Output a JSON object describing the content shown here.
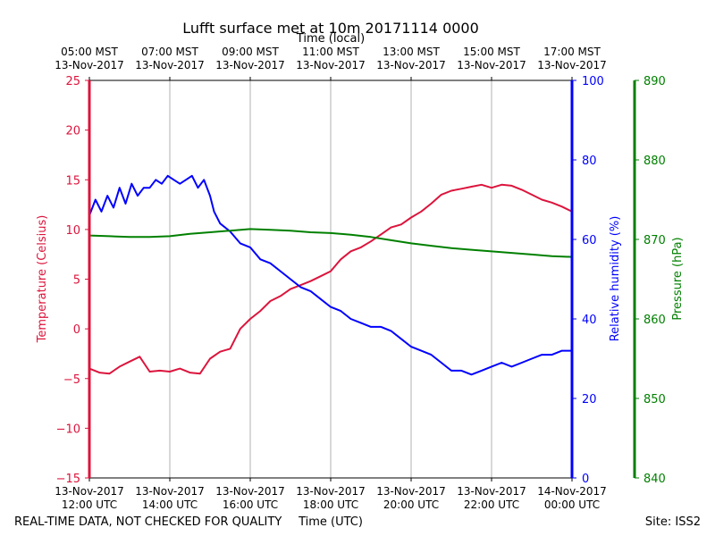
{
  "chart_data": {
    "type": "line",
    "title": "Lufft surface met at 10m 20171114 0000",
    "top_axis_label": "Time (local)",
    "xlabel": "Time (UTC)",
    "x_range_hours_utc": [
      12,
      24
    ],
    "bottom_ticks": [
      {
        "hour": 12,
        "line1": "13-Nov-2017",
        "line2": "12:00 UTC"
      },
      {
        "hour": 14,
        "line1": "13-Nov-2017",
        "line2": "14:00 UTC"
      },
      {
        "hour": 16,
        "line1": "13-Nov-2017",
        "line2": "16:00 UTC"
      },
      {
        "hour": 18,
        "line1": "13-Nov-2017",
        "line2": "18:00 UTC"
      },
      {
        "hour": 20,
        "line1": "13-Nov-2017",
        "line2": "20:00 UTC"
      },
      {
        "hour": 22,
        "line1": "13-Nov-2017",
        "line2": "22:00 UTC"
      },
      {
        "hour": 24,
        "line1": "14-Nov-2017",
        "line2": "00:00 UTC"
      }
    ],
    "top_ticks": [
      {
        "hour": 12,
        "line1": "05:00 MST",
        "line2": "13-Nov-2017"
      },
      {
        "hour": 14,
        "line1": "07:00 MST",
        "line2": "13-Nov-2017"
      },
      {
        "hour": 16,
        "line1": "09:00 MST",
        "line2": "13-Nov-2017"
      },
      {
        "hour": 18,
        "line1": "11:00 MST",
        "line2": "13-Nov-2017"
      },
      {
        "hour": 20,
        "line1": "13:00 MST",
        "line2": "13-Nov-2017"
      },
      {
        "hour": 22,
        "line1": "15:00 MST",
        "line2": "13-Nov-2017"
      },
      {
        "hour": 24,
        "line1": "17:00 MST",
        "line2": "13-Nov-2017"
      }
    ],
    "axes": {
      "temperature": {
        "label": "Temperature (Celsius)",
        "ylim": [
          -15,
          25
        ],
        "ticks": [
          -15,
          -10,
          -5,
          0,
          5,
          10,
          15,
          20,
          25
        ],
        "tick_labels": [
          "−15",
          "−10",
          "−5",
          "0",
          "5",
          "10",
          "15",
          "20",
          "25"
        ],
        "color": "#dc143c"
      },
      "humidity": {
        "label": "Relative humidity (%)",
        "ylim": [
          0,
          100
        ],
        "ticks": [
          0,
          20,
          40,
          60,
          80,
          100
        ],
        "tick_labels": [
          "0",
          "20",
          "40",
          "60",
          "80",
          "100"
        ],
        "color": "#0000ff"
      },
      "pressure": {
        "label": "Pressure (hPa)",
        "ylim": [
          840,
          890
        ],
        "ticks": [
          840,
          850,
          860,
          870,
          880,
          890
        ],
        "tick_labels": [
          "840",
          "850",
          "860",
          "870",
          "880",
          "890"
        ],
        "color": "#008000"
      }
    },
    "grid": true,
    "series": [
      {
        "name": "Temperature",
        "axis": "temperature",
        "color": "#dc143c",
        "x": [
          12.0,
          12.25,
          12.5,
          12.75,
          13.0,
          13.25,
          13.5,
          13.75,
          14.0,
          14.25,
          14.5,
          14.75,
          15.0,
          15.25,
          15.5,
          15.75,
          16.0,
          16.25,
          16.5,
          16.75,
          17.0,
          17.25,
          17.5,
          17.75,
          18.0,
          18.25,
          18.5,
          18.75,
          19.0,
          19.25,
          19.5,
          19.75,
          20.0,
          20.25,
          20.5,
          20.75,
          21.0,
          21.25,
          21.5,
          21.75,
          22.0,
          22.25,
          22.5,
          22.75,
          23.0,
          23.25,
          23.5,
          23.75,
          24.0
        ],
        "y": [
          -4.0,
          -4.4,
          -4.5,
          -3.8,
          -3.3,
          -2.8,
          -4.3,
          -4.2,
          -4.3,
          -4.0,
          -4.4,
          -4.5,
          -3.0,
          -2.3,
          -2.0,
          0.0,
          1.0,
          1.8,
          2.8,
          3.3,
          4.0,
          4.4,
          4.8,
          5.3,
          5.8,
          7.0,
          7.8,
          8.2,
          8.8,
          9.5,
          10.2,
          10.5,
          11.2,
          11.8,
          12.6,
          13.5,
          13.9,
          14.1,
          14.3,
          14.5,
          14.2,
          14.5,
          14.4,
          14.0,
          13.5,
          13.0,
          12.7,
          12.3,
          11.8
        ]
      },
      {
        "name": "Relative humidity",
        "axis": "humidity",
        "color": "#0000ff",
        "x": [
          12.0,
          12.15,
          12.3,
          12.45,
          12.6,
          12.75,
          12.9,
          13.05,
          13.2,
          13.35,
          13.5,
          13.65,
          13.8,
          13.95,
          14.1,
          14.25,
          14.4,
          14.55,
          14.7,
          14.85,
          15.0,
          15.1,
          15.25,
          15.5,
          15.75,
          16.0,
          16.25,
          16.5,
          16.75,
          17.0,
          17.25,
          17.5,
          17.75,
          18.0,
          18.25,
          18.5,
          18.75,
          19.0,
          19.25,
          19.5,
          19.75,
          20.0,
          20.25,
          20.5,
          20.75,
          21.0,
          21.25,
          21.5,
          21.75,
          22.0,
          22.25,
          22.5,
          22.75,
          23.0,
          23.25,
          23.5,
          23.75,
          24.0
        ],
        "y": [
          66,
          70,
          67,
          71,
          68,
          73,
          69,
          74,
          71,
          73,
          73,
          75,
          74,
          76,
          75,
          74,
          75,
          76,
          73,
          75,
          71,
          67,
          64,
          62,
          59,
          58,
          55,
          54,
          52,
          50,
          48,
          47,
          45,
          43,
          42,
          40,
          39,
          38,
          38,
          37,
          35,
          33,
          32,
          31,
          29,
          27,
          27,
          26,
          27,
          28,
          29,
          28,
          29,
          30,
          31,
          31,
          32,
          32
        ]
      },
      {
        "name": "Pressure",
        "axis": "pressure",
        "color": "#008000",
        "x": [
          12.0,
          12.5,
          13.0,
          13.5,
          14.0,
          14.5,
          15.0,
          15.5,
          16.0,
          16.5,
          17.0,
          17.5,
          18.0,
          18.5,
          19.0,
          19.5,
          20.0,
          20.5,
          21.0,
          21.5,
          22.0,
          22.5,
          23.0,
          23.5,
          24.0
        ],
        "y": [
          870.5,
          870.4,
          870.3,
          870.3,
          870.4,
          870.7,
          870.9,
          871.1,
          871.3,
          871.2,
          871.1,
          870.9,
          870.8,
          870.6,
          870.3,
          869.9,
          869.5,
          869.2,
          868.9,
          868.7,
          868.5,
          868.3,
          868.1,
          867.9,
          867.8
        ]
      }
    ]
  },
  "footer": {
    "left": "REAL-TIME DATA, NOT CHECKED FOR QUALITY",
    "right": "Site: ISS2"
  }
}
